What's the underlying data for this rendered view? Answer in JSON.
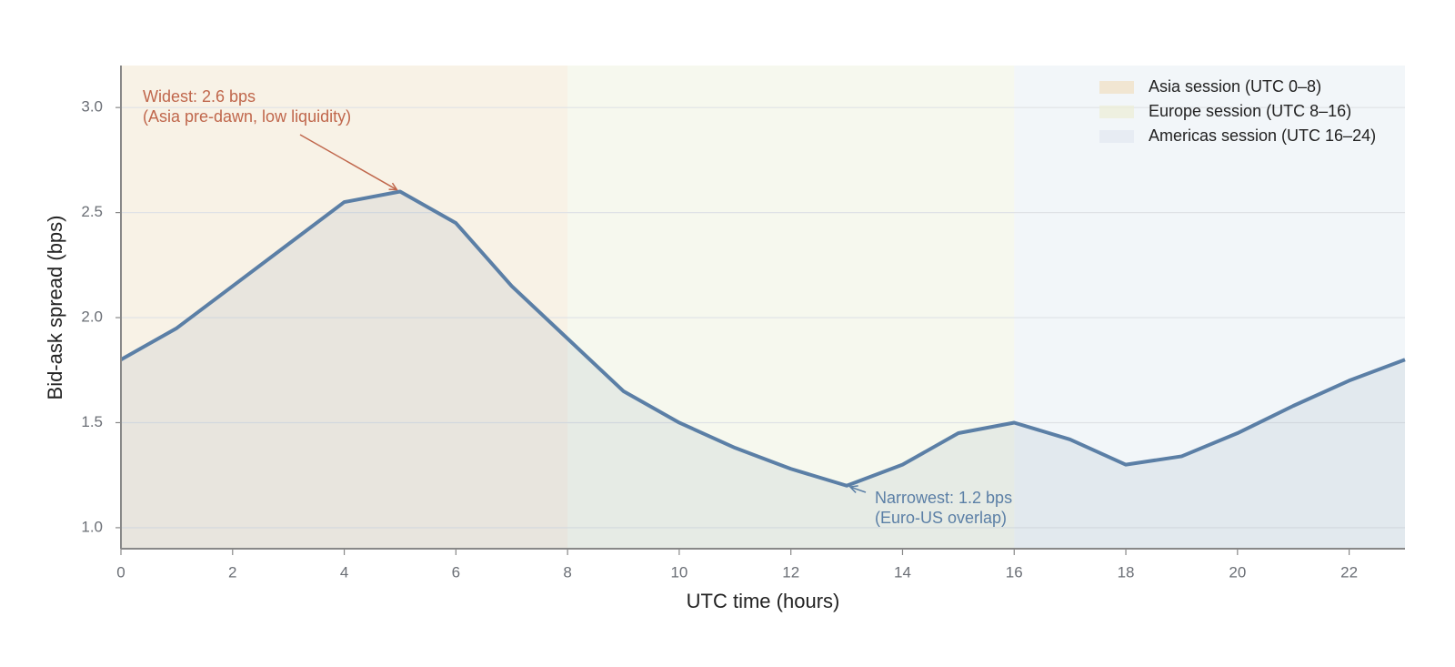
{
  "chart_data": {
    "type": "line",
    "x_label": "UTC time (hours)",
    "y_label": "Bid-ask spread (bps)",
    "x": [
      0,
      1,
      2,
      3,
      4,
      5,
      6,
      7,
      8,
      9,
      10,
      11,
      12,
      13,
      14,
      15,
      16,
      17,
      18,
      19,
      20,
      21,
      22,
      23
    ],
    "values": [
      1.8,
      1.95,
      2.15,
      2.35,
      2.55,
      2.6,
      2.45,
      2.15,
      1.9,
      1.65,
      1.5,
      1.38,
      1.28,
      1.2,
      1.3,
      1.45,
      1.5,
      1.42,
      1.3,
      1.34,
      1.45,
      1.58,
      1.7,
      1.8
    ],
    "color": "#5b7fa6",
    "xlim": [
      0,
      23
    ],
    "ylim": [
      0.9,
      3.2
    ],
    "xticks": [
      0,
      2,
      4,
      6,
      8,
      10,
      12,
      14,
      16,
      18,
      20,
      22
    ],
    "yticks": [
      {
        "value": 1.0,
        "label": "1.0"
      },
      1.5,
      {
        "value": 2.0,
        "label": "2.0"
      },
      2.5,
      {
        "value": 3.0,
        "label": "3.0"
      }
    ],
    "grid": true,
    "legend": "upper right",
    "spans": [
      {
        "label": "Asia session (UTC 0–8)",
        "start": 0,
        "end": 8,
        "color": "#f0e2c8"
      },
      {
        "label": "Europe session (UTC 8–16)",
        "start": 8,
        "end": 16,
        "color": "#ecefd9"
      },
      {
        "label": "Americas session (UTC 16–24)",
        "start": 16,
        "end": 24,
        "color": "#e3eaf1"
      }
    ],
    "annotations": [
      {
        "lines": [
          "Widest: 2.6 bps",
          "(Asia pre-dawn, low liquidity)"
        ],
        "x": 5,
        "y": 2.6,
        "color": "#c0674c"
      },
      {
        "lines": [
          "Narrowest: 1.2 bps",
          "(Euro-US overlap)"
        ],
        "x": 13,
        "y": 1.2,
        "color": "#5b7fa6"
      }
    ]
  }
}
